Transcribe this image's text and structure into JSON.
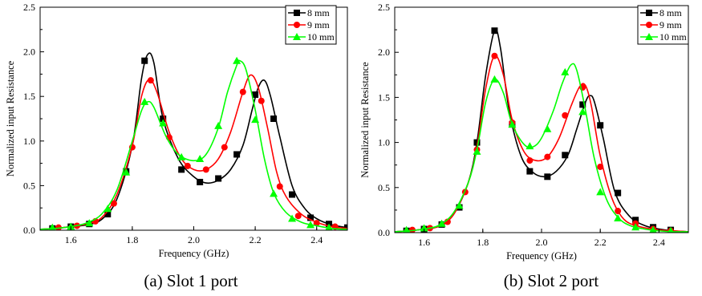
{
  "colors": {
    "series_8mm": "#000000",
    "series_9mm": "#ff0000",
    "series_10mm": "#00ff00"
  },
  "chart_data": [
    {
      "type": "line",
      "caption": "(a) Slot 1 port",
      "xlabel": "Frequency (GHz)",
      "ylabel": "Normalized input Resistance",
      "xlim": [
        1.5,
        2.5
      ],
      "ylim": [
        0.0,
        2.5
      ],
      "xticks": [
        "1.6",
        "1.8",
        "2.0",
        "2.2",
        "2.4"
      ],
      "yticks": [
        "0.0",
        "0.5",
        "1.0",
        "1.5",
        "2.0",
        "2.5"
      ],
      "grid": false,
      "legend": "top-right",
      "series": [
        {
          "name": "8 mm",
          "marker": "square",
          "curve": [
            [
              1.5,
              0.01
            ],
            [
              1.55,
              0.02
            ],
            [
              1.6,
              0.04
            ],
            [
              1.65,
              0.06
            ],
            [
              1.7,
              0.12
            ],
            [
              1.75,
              0.35
            ],
            [
              1.8,
              0.95
            ],
            [
              1.83,
              1.7
            ],
            [
              1.85,
              1.97
            ],
            [
              1.87,
              1.88
            ],
            [
              1.9,
              1.25
            ],
            [
              1.95,
              0.8
            ],
            [
              2.0,
              0.6
            ],
            [
              2.04,
              0.53
            ],
            [
              2.08,
              0.56
            ],
            [
              2.12,
              0.68
            ],
            [
              2.16,
              0.95
            ],
            [
              2.19,
              1.35
            ],
            [
              2.21,
              1.6
            ],
            [
              2.23,
              1.68
            ],
            [
              2.25,
              1.5
            ],
            [
              2.28,
              1.05
            ],
            [
              2.32,
              0.5
            ],
            [
              2.36,
              0.25
            ],
            [
              2.4,
              0.13
            ],
            [
              2.45,
              0.06
            ],
            [
              2.5,
              0.03
            ]
          ],
          "markers": [
            [
              1.54,
              0.02
            ],
            [
              1.6,
              0.04
            ],
            [
              1.66,
              0.07
            ],
            [
              1.72,
              0.18
            ],
            [
              1.78,
              0.66
            ],
            [
              1.84,
              1.9
            ],
            [
              1.9,
              1.25
            ],
            [
              1.96,
              0.68
            ],
            [
              2.02,
              0.54
            ],
            [
              2.08,
              0.58
            ],
            [
              2.14,
              0.85
            ],
            [
              2.2,
              1.52
            ],
            [
              2.26,
              1.25
            ],
            [
              2.32,
              0.4
            ],
            [
              2.38,
              0.14
            ],
            [
              2.44,
              0.07
            ],
            [
              2.5,
              0.03
            ]
          ]
        },
        {
          "name": "9 mm",
          "marker": "circle",
          "curve": [
            [
              1.5,
              0.01
            ],
            [
              1.55,
              0.02
            ],
            [
              1.6,
              0.04
            ],
            [
              1.65,
              0.07
            ],
            [
              1.7,
              0.14
            ],
            [
              1.75,
              0.4
            ],
            [
              1.8,
              0.95
            ],
            [
              1.83,
              1.5
            ],
            [
              1.855,
              1.69
            ],
            [
              1.88,
              1.55
            ],
            [
              1.92,
              1.1
            ],
            [
              1.96,
              0.8
            ],
            [
              2.0,
              0.68
            ],
            [
              2.04,
              0.68
            ],
            [
              2.08,
              0.8
            ],
            [
              2.12,
              1.1
            ],
            [
              2.16,
              1.55
            ],
            [
              2.185,
              1.74
            ],
            [
              2.21,
              1.6
            ],
            [
              2.24,
              1.15
            ],
            [
              2.27,
              0.65
            ],
            [
              2.3,
              0.38
            ],
            [
              2.35,
              0.18
            ],
            [
              2.4,
              0.09
            ],
            [
              2.45,
              0.04
            ],
            [
              2.5,
              0.02
            ]
          ],
          "markers": [
            [
              1.56,
              0.03
            ],
            [
              1.62,
              0.05
            ],
            [
              1.68,
              0.1
            ],
            [
              1.74,
              0.3
            ],
            [
              1.8,
              0.93
            ],
            [
              1.86,
              1.68
            ],
            [
              1.92,
              1.04
            ],
            [
              1.98,
              0.72
            ],
            [
              2.04,
              0.68
            ],
            [
              2.1,
              0.93
            ],
            [
              2.16,
              1.55
            ],
            [
              2.22,
              1.45
            ],
            [
              2.28,
              0.49
            ],
            [
              2.34,
              0.16
            ],
            [
              2.4,
              0.08
            ],
            [
              2.46,
              0.04
            ]
          ]
        },
        {
          "name": "10 mm",
          "marker": "triangle",
          "curve": [
            [
              1.5,
              0.01
            ],
            [
              1.55,
              0.02
            ],
            [
              1.6,
              0.04
            ],
            [
              1.65,
              0.08
            ],
            [
              1.7,
              0.18
            ],
            [
              1.75,
              0.45
            ],
            [
              1.8,
              1.0
            ],
            [
              1.83,
              1.34
            ],
            [
              1.85,
              1.44
            ],
            [
              1.87,
              1.38
            ],
            [
              1.91,
              1.05
            ],
            [
              1.95,
              0.85
            ],
            [
              2.0,
              0.78
            ],
            [
              2.04,
              0.85
            ],
            [
              2.08,
              1.15
            ],
            [
              2.11,
              1.55
            ],
            [
              2.14,
              1.85
            ],
            [
              2.15,
              1.9
            ],
            [
              2.17,
              1.8
            ],
            [
              2.2,
              1.35
            ],
            [
              2.23,
              0.8
            ],
            [
              2.26,
              0.42
            ],
            [
              2.3,
              0.2
            ],
            [
              2.35,
              0.09
            ],
            [
              2.4,
              0.05
            ],
            [
              2.45,
              0.02
            ],
            [
              2.5,
              0.01
            ]
          ],
          "markers": [
            [
              1.54,
              0.03
            ],
            [
              1.6,
              0.04
            ],
            [
              1.66,
              0.08
            ],
            [
              1.72,
              0.24
            ],
            [
              1.78,
              0.65
            ],
            [
              1.84,
              1.44
            ],
            [
              1.9,
              1.2
            ],
            [
              1.96,
              0.82
            ],
            [
              2.02,
              0.8
            ],
            [
              2.08,
              1.17
            ],
            [
              2.14,
              1.9
            ],
            [
              2.2,
              1.24
            ],
            [
              2.26,
              0.41
            ],
            [
              2.32,
              0.13
            ],
            [
              2.38,
              0.06
            ],
            [
              2.44,
              0.03
            ]
          ]
        }
      ]
    },
    {
      "type": "line",
      "caption": "(b) Slot 2 port",
      "xlabel": "Frequency (GHz)",
      "ylabel": "Normalized input Resistance",
      "xlim": [
        1.5,
        2.5
      ],
      "ylim": [
        0.0,
        2.5
      ],
      "xticks": [
        "1.6",
        "1.8",
        "2.0",
        "2.2",
        "2.4"
      ],
      "yticks": [
        "0.0",
        "0.5",
        "1.0",
        "1.5",
        "2.0",
        "2.5"
      ],
      "grid": false,
      "legend": "top-right",
      "series": [
        {
          "name": "8 mm",
          "marker": "square",
          "curve": [
            [
              1.5,
              0.01
            ],
            [
              1.55,
              0.02
            ],
            [
              1.6,
              0.04
            ],
            [
              1.65,
              0.07
            ],
            [
              1.7,
              0.2
            ],
            [
              1.75,
              0.55
            ],
            [
              1.78,
              1.0
            ],
            [
              1.81,
              1.75
            ],
            [
              1.84,
              2.24
            ],
            [
              1.86,
              2.05
            ],
            [
              1.89,
              1.35
            ],
            [
              1.93,
              0.85
            ],
            [
              1.97,
              0.67
            ],
            [
              2.01,
              0.62
            ],
            [
              2.05,
              0.68
            ],
            [
              2.09,
              0.86
            ],
            [
              2.12,
              1.15
            ],
            [
              2.15,
              1.45
            ],
            [
              2.165,
              1.52
            ],
            [
              2.18,
              1.45
            ],
            [
              2.21,
              1.05
            ],
            [
              2.25,
              0.45
            ],
            [
              2.3,
              0.18
            ],
            [
              2.35,
              0.08
            ],
            [
              2.4,
              0.04
            ],
            [
              2.45,
              0.02
            ],
            [
              2.5,
              0.01
            ]
          ],
          "markers": [
            [
              1.54,
              0.02
            ],
            [
              1.6,
              0.04
            ],
            [
              1.66,
              0.09
            ],
            [
              1.72,
              0.28
            ],
            [
              1.78,
              1.0
            ],
            [
              1.84,
              2.24
            ],
            [
              1.9,
              1.2
            ],
            [
              1.96,
              0.68
            ],
            [
              2.02,
              0.62
            ],
            [
              2.08,
              0.86
            ],
            [
              2.14,
              1.42
            ],
            [
              2.2,
              1.19
            ],
            [
              2.26,
              0.44
            ],
            [
              2.32,
              0.14
            ],
            [
              2.38,
              0.06
            ],
            [
              2.44,
              0.03
            ]
          ]
        },
        {
          "name": "9 mm",
          "marker": "circle",
          "curve": [
            [
              1.5,
              0.01
            ],
            [
              1.55,
              0.02
            ],
            [
              1.6,
              0.04
            ],
            [
              1.65,
              0.07
            ],
            [
              1.7,
              0.2
            ],
            [
              1.75,
              0.55
            ],
            [
              1.78,
              0.95
            ],
            [
              1.81,
              1.6
            ],
            [
              1.84,
              1.96
            ],
            [
              1.87,
              1.75
            ],
            [
              1.9,
              1.25
            ],
            [
              1.94,
              0.9
            ],
            [
              1.98,
              0.8
            ],
            [
              2.02,
              0.84
            ],
            [
              2.06,
              1.05
            ],
            [
              2.1,
              1.4
            ],
            [
              2.13,
              1.62
            ],
            [
              2.15,
              1.63
            ],
            [
              2.17,
              1.4
            ],
            [
              2.2,
              0.85
            ],
            [
              2.24,
              0.38
            ],
            [
              2.28,
              0.15
            ],
            [
              2.33,
              0.07
            ],
            [
              2.4,
              0.03
            ],
            [
              2.45,
              0.02
            ],
            [
              2.5,
              0.01
            ]
          ],
          "markers": [
            [
              1.56,
              0.03
            ],
            [
              1.62,
              0.05
            ],
            [
              1.68,
              0.12
            ],
            [
              1.74,
              0.45
            ],
            [
              1.78,
              0.92
            ],
            [
              1.84,
              1.96
            ],
            [
              1.9,
              1.22
            ],
            [
              1.96,
              0.8
            ],
            [
              2.02,
              0.84
            ],
            [
              2.08,
              1.3
            ],
            [
              2.14,
              1.61
            ],
            [
              2.2,
              0.73
            ],
            [
              2.26,
              0.24
            ],
            [
              2.32,
              0.1
            ],
            [
              2.38,
              0.04
            ],
            [
              2.44,
              0.02
            ]
          ]
        },
        {
          "name": "10 mm",
          "marker": "triangle",
          "curve": [
            [
              1.5,
              0.01
            ],
            [
              1.55,
              0.02
            ],
            [
              1.6,
              0.04
            ],
            [
              1.65,
              0.08
            ],
            [
              1.7,
              0.22
            ],
            [
              1.75,
              0.55
            ],
            [
              1.78,
              0.92
            ],
            [
              1.81,
              1.45
            ],
            [
              1.84,
              1.7
            ],
            [
              1.87,
              1.55
            ],
            [
              1.9,
              1.2
            ],
            [
              1.94,
              0.98
            ],
            [
              1.97,
              0.95
            ],
            [
              2.0,
              1.05
            ],
            [
              2.04,
              1.35
            ],
            [
              2.07,
              1.65
            ],
            [
              2.1,
              1.86
            ],
            [
              2.12,
              1.8
            ],
            [
              2.15,
              1.35
            ],
            [
              2.18,
              0.82
            ],
            [
              2.22,
              0.38
            ],
            [
              2.26,
              0.17
            ],
            [
              2.3,
              0.08
            ],
            [
              2.35,
              0.04
            ],
            [
              2.4,
              0.02
            ],
            [
              2.45,
              0.01
            ],
            [
              2.5,
              0.01
            ]
          ],
          "markers": [
            [
              1.54,
              0.03
            ],
            [
              1.6,
              0.05
            ],
            [
              1.66,
              0.1
            ],
            [
              1.72,
              0.3
            ],
            [
              1.78,
              0.9
            ],
            [
              1.84,
              1.7
            ],
            [
              1.9,
              1.2
            ],
            [
              1.96,
              0.96
            ],
            [
              2.02,
              1.15
            ],
            [
              2.08,
              1.78
            ],
            [
              2.14,
              1.34
            ],
            [
              2.2,
              0.45
            ],
            [
              2.26,
              0.16
            ],
            [
              2.32,
              0.06
            ],
            [
              2.38,
              0.03
            ],
            [
              2.44,
              0.02
            ]
          ]
        }
      ]
    }
  ]
}
